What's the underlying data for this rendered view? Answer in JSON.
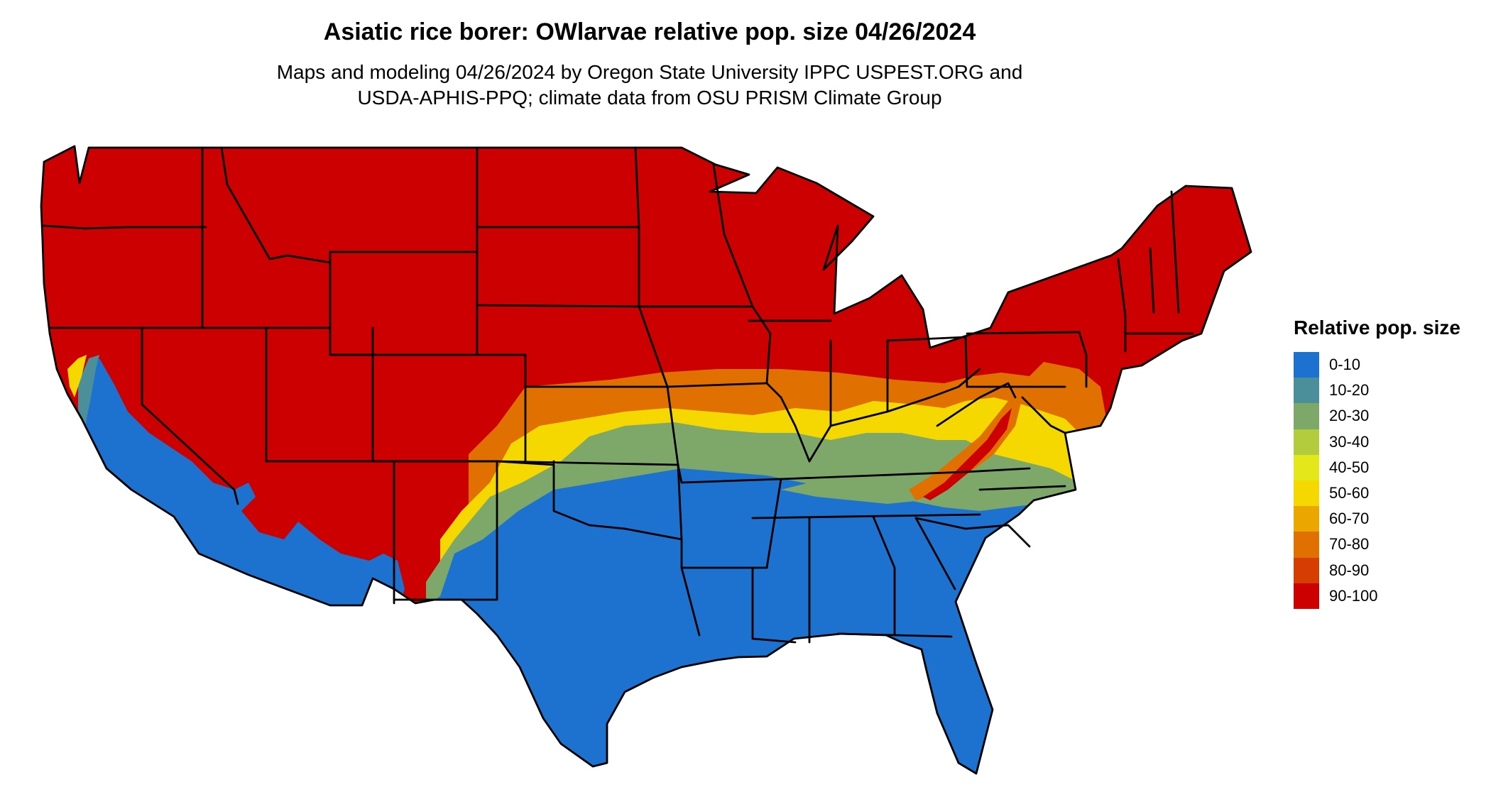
{
  "title": "Asiatic rice borer: OWlarvae relative pop. size 04/26/2024",
  "subtitle_lines": [
    "Maps and modeling 04/26/2024 by Oregon State University IPPC USPEST.ORG and",
    "USDA-APHIS-PPQ; climate data from OSU PRISM Climate Group"
  ],
  "map": {
    "region": "contiguous United States",
    "ocean_color": "#ffffff",
    "state_border_color": "#000000",
    "zones": [
      {
        "class": "90-100",
        "color": "#CC0000",
        "extent": "northern and central states, Great Basin and Rockies"
      },
      {
        "class": "80-90",
        "color": "#D63D00",
        "extent": "thin edges of zone boundaries"
      },
      {
        "class": "70-80",
        "color": "#E07000",
        "extent": "band across Kansas, Missouri, Ohio Valley, Maryland"
      },
      {
        "class": "50-60",
        "color": "#F5D800",
        "extent": "band across Oklahoma panhandle, Kentucky, Virginia"
      },
      {
        "class": "20-30",
        "color": "#7EA86A",
        "extent": "Oklahoma, Arkansas north, Tennessee, North Carolina"
      },
      {
        "class": "10-20",
        "color": "#4A8F9A",
        "extent": "transition edges"
      },
      {
        "class": "0-10",
        "color": "#1C72CE",
        "extent": "Texas, Gulf Coast, Southeast, southern Arizona, California valleys"
      }
    ]
  },
  "legend": {
    "title": "Relative pop. size",
    "items": [
      {
        "label": "0-10",
        "color": "#1C72CE"
      },
      {
        "label": "10-20",
        "color": "#4A8F9A"
      },
      {
        "label": "20-30",
        "color": "#7EA86A"
      },
      {
        "label": "30-40",
        "color": "#B2CC3E"
      },
      {
        "label": "40-50",
        "color": "#E4E81B"
      },
      {
        "label": "50-60",
        "color": "#F5D800"
      },
      {
        "label": "60-70",
        "color": "#EBA700"
      },
      {
        "label": "70-80",
        "color": "#E07000"
      },
      {
        "label": "80-90",
        "color": "#D63D00"
      },
      {
        "label": "90-100",
        "color": "#CC0000"
      }
    ]
  }
}
